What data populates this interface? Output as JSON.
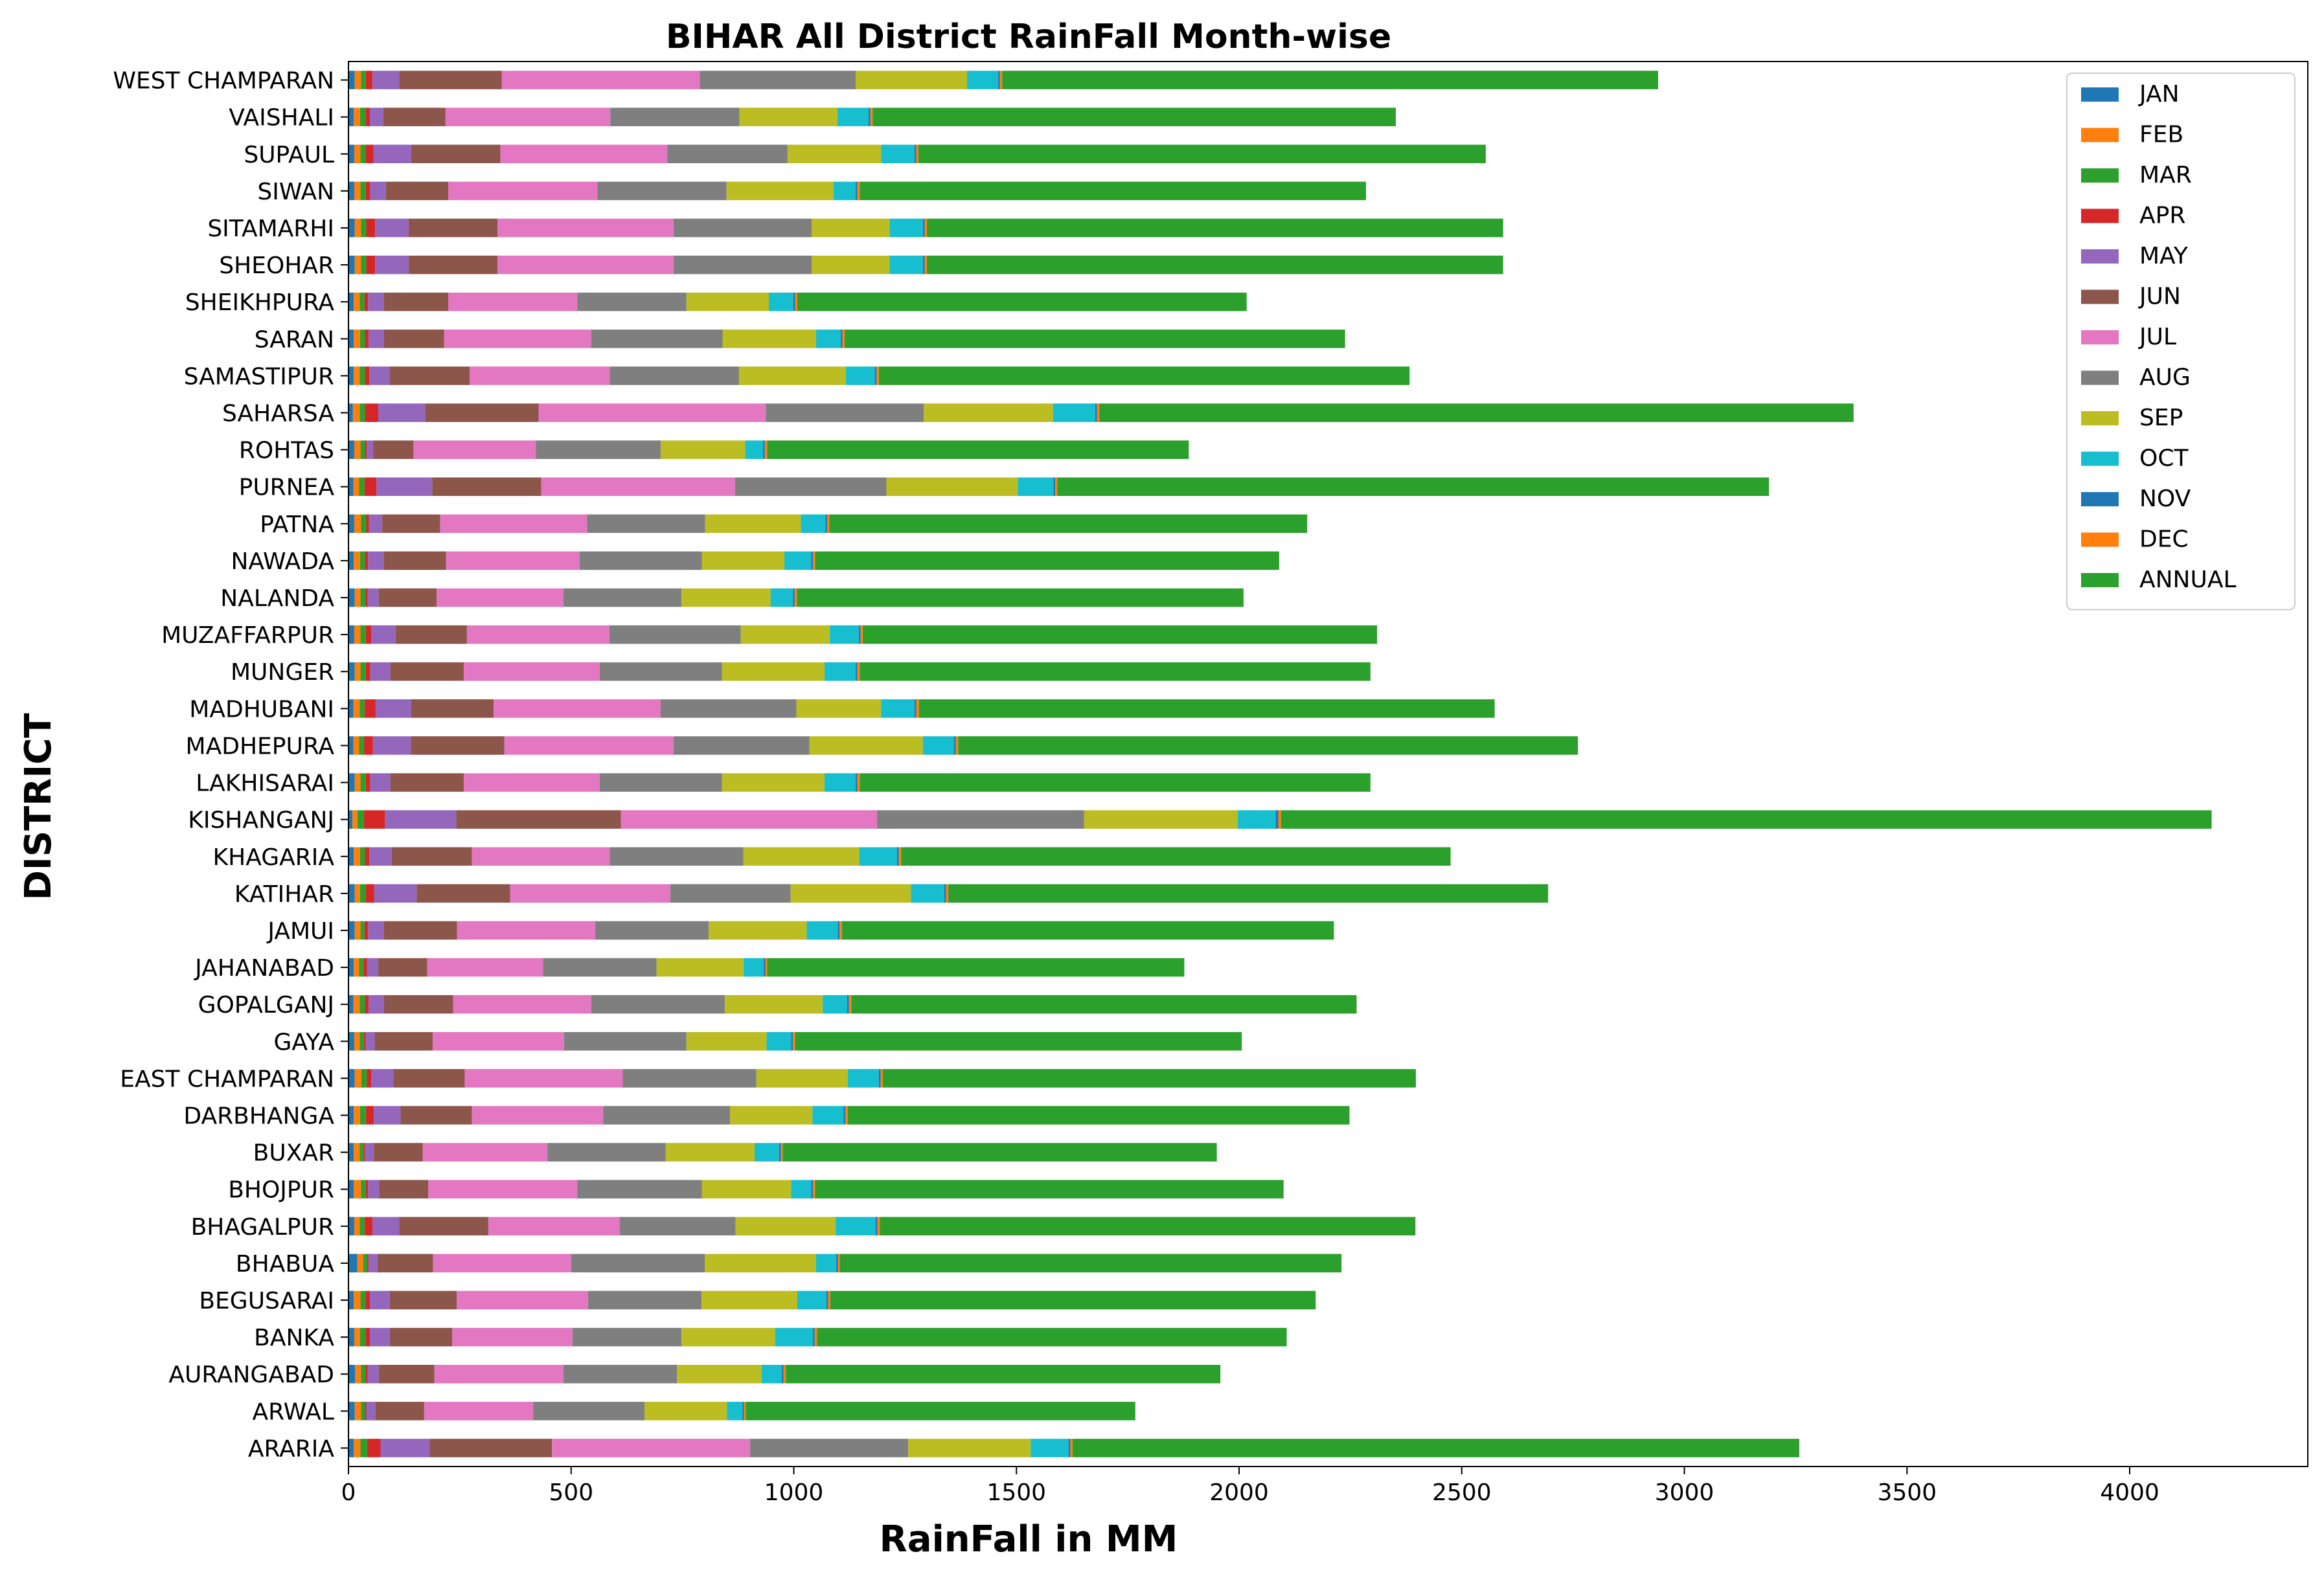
{
  "chart_data": {
    "type": "bar",
    "orientation": "horizontal",
    "stacked": true,
    "title": "BIHAR All District RainFall Month-wise",
    "xlabel": "RainFall in MM",
    "ylabel": "DISTRICT",
    "xlim": [
      0,
      4400
    ],
    "xticks": [
      "0",
      "500",
      "1000",
      "1500",
      "2000",
      "2500",
      "3000",
      "3500",
      "4000"
    ],
    "legend_position": "top-right",
    "categories": [
      "ARARIA",
      "ARWAL",
      "AURANGABAD",
      "BANKA",
      "BEGUSARAI",
      "BHABUA",
      "BHAGALPUR",
      "BHOJPUR",
      "BUXAR",
      "DARBHANGA",
      "EAST CHAMPARAN",
      "GAYA",
      "GOPALGANJ",
      "JAHANABAD",
      "JAMUI",
      "KATIHAR",
      "KHAGARIA",
      "KISHANGANJ",
      "LAKHISARAI",
      "MADHEPURA",
      "MADHUBANI",
      "MUNGER",
      "MUZAFFARPUR",
      "NALANDA",
      "NAWADA",
      "PATNA",
      "PURNEA",
      "ROHTAS",
      "SAHARSA",
      "SAMASTIPUR",
      "SARAN",
      "SHEIKHPURA",
      "SHEOHAR",
      "SITAMARHI",
      "SIWAN",
      "SUPAUL",
      "VAISHALI",
      "WEST CHAMPARAN"
    ],
    "series": [
      {
        "name": "JAN",
        "color": "#1f77b4",
        "values": [
          12,
          14,
          15,
          13,
          12,
          20,
          13,
          12,
          12,
          12,
          14,
          13,
          11,
          12,
          14,
          14,
          12,
          9,
          14,
          11,
          11,
          14,
          13,
          14,
          12,
          13,
          11,
          13,
          10,
          12,
          12,
          12,
          14,
          14,
          13,
          13,
          12,
          14
        ]
      },
      {
        "name": "FEB",
        "color": "#ff7f0e",
        "values": [
          15,
          14,
          13,
          13,
          15,
          13,
          12,
          16,
          13,
          14,
          15,
          12,
          14,
          12,
          13,
          12,
          14,
          11,
          13,
          13,
          14,
          13,
          14,
          13,
          14,
          15,
          13,
          14,
          15,
          13,
          14,
          13,
          14,
          14,
          14,
          14,
          14,
          14
        ]
      },
      {
        "name": "MAR",
        "color": "#2ca02c",
        "values": [
          15,
          9,
          10,
          12,
          11,
          9,
          11,
          11,
          9,
          13,
          12,
          10,
          12,
          10,
          9,
          12,
          11,
          15,
          12,
          11,
          11,
          12,
          12,
          11,
          11,
          12,
          12,
          10,
          12,
          12,
          11,
          11,
          12,
          12,
          12,
          11,
          12,
          11
        ]
      },
      {
        "name": "APR",
        "color": "#d62728",
        "values": [
          30,
          3,
          5,
          10,
          10,
          3,
          18,
          5,
          3,
          18,
          10,
          4,
          8,
          8,
          8,
          20,
          10,
          47,
          10,
          20,
          25,
          10,
          12,
          5,
          7,
          6,
          27,
          4,
          30,
          10,
          8,
          8,
          20,
          20,
          10,
          18,
          10,
          15
        ]
      },
      {
        "name": "MAY",
        "color": "#9467bd",
        "values": [
          110,
          20,
          25,
          45,
          45,
          20,
          60,
          25,
          20,
          60,
          50,
          20,
          35,
          25,
          35,
          95,
          50,
          160,
          45,
          85,
          80,
          45,
          55,
          25,
          35,
          30,
          125,
          15,
          105,
          45,
          35,
          35,
          75,
          75,
          35,
          85,
          30,
          60
        ]
      },
      {
        "name": "JUN",
        "color": "#8c564b",
        "values": [
          275,
          110,
          125,
          140,
          150,
          125,
          200,
          110,
          110,
          160,
          160,
          130,
          155,
          110,
          165,
          210,
          180,
          370,
          165,
          210,
          185,
          165,
          160,
          130,
          140,
          130,
          245,
          90,
          255,
          180,
          135,
          145,
          200,
          200,
          140,
          200,
          140,
          230
        ]
      },
      {
        "name": "JUL",
        "color": "#e377c2",
        "values": [
          445,
          245,
          290,
          270,
          295,
          310,
          295,
          335,
          280,
          295,
          355,
          295,
          310,
          260,
          310,
          360,
          310,
          575,
          305,
          380,
          375,
          305,
          320,
          285,
          300,
          330,
          435,
          275,
          510,
          315,
          330,
          290,
          395,
          395,
          335,
          375,
          370,
          445
        ]
      },
      {
        "name": "AUG",
        "color": "#7f7f7f",
        "values": [
          355,
          250,
          255,
          245,
          255,
          300,
          260,
          280,
          265,
          285,
          300,
          275,
          300,
          255,
          255,
          270,
          300,
          465,
          275,
          305,
          305,
          275,
          295,
          265,
          275,
          265,
          340,
          280,
          355,
          290,
          295,
          245,
          310,
          310,
          290,
          270,
          290,
          350
        ]
      },
      {
        "name": "SEP",
        "color": "#bcbd22",
        "values": [
          275,
          185,
          190,
          210,
          215,
          250,
          225,
          200,
          200,
          185,
          205,
          180,
          220,
          195,
          220,
          270,
          260,
          345,
          230,
          255,
          190,
          230,
          200,
          200,
          185,
          215,
          295,
          190,
          290,
          240,
          210,
          185,
          175,
          175,
          240,
          210,
          220,
          250
        ]
      },
      {
        "name": "OCT",
        "color": "#17becf",
        "values": [
          85,
          35,
          45,
          85,
          65,
          45,
          90,
          45,
          55,
          70,
          70,
          55,
          55,
          45,
          70,
          75,
          85,
          85,
          70,
          70,
          75,
          70,
          65,
          50,
          60,
          55,
          80,
          40,
          95,
          65,
          55,
          55,
          75,
          75,
          50,
          75,
          70,
          70
        ]
      },
      {
        "name": "NOV",
        "color": "#1f77b4",
        "values": [
          4,
          3,
          4,
          4,
          4,
          4,
          4,
          4,
          4,
          4,
          4,
          4,
          4,
          4,
          4,
          4,
          4,
          6,
          4,
          4,
          4,
          4,
          4,
          4,
          4,
          4,
          4,
          4,
          4,
          4,
          4,
          4,
          4,
          4,
          4,
          4,
          4,
          4
        ]
      },
      {
        "name": "DEC",
        "color": "#ff7f0e",
        "values": [
          5,
          4,
          5,
          5,
          5,
          4,
          5,
          5,
          4,
          5,
          5,
          5,
          5,
          4,
          5,
          5,
          5,
          6,
          5,
          5,
          6,
          5,
          5,
          5,
          5,
          5,
          5,
          5,
          5,
          5,
          5,
          5,
          5,
          5,
          5,
          5,
          5,
          5
        ]
      },
      {
        "name": "ANNUAL",
        "color": "#2ca02c",
        "values": [
          1632,
          875,
          976,
          1055,
          1090,
          1127,
          1203,
          1052,
          975,
          1127,
          1197,
          1003,
          1135,
          937,
          1105,
          1347,
          1234,
          2090,
          1147,
          1392,
          1293,
          1147,
          1155,
          1003,
          1042,
          1073,
          1598,
          947,
          1694,
          1192,
          1124,
          1009,
          1294,
          1294,
          1137,
          1274,
          1175,
          1473
        ]
      }
    ]
  }
}
